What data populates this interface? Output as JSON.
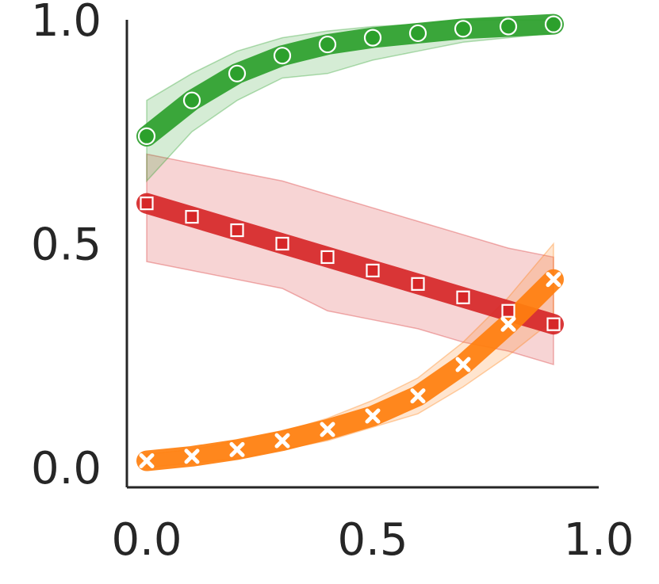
{
  "chart_data": {
    "type": "line",
    "title": "",
    "xlabel": "",
    "ylabel": "",
    "xlim": [
      0.0,
      1.0
    ],
    "ylim": [
      0.0,
      1.0
    ],
    "x_ticks": [
      "0.0",
      "0.5",
      "1.0"
    ],
    "y_ticks": [
      "0.0",
      "0.5",
      "1.0"
    ],
    "grid": false,
    "legend": "none",
    "x": [
      0.0,
      0.1,
      0.2,
      0.3,
      0.4,
      0.5,
      0.6,
      0.7,
      0.8,
      0.9
    ],
    "series": [
      {
        "color": "#2ca02c",
        "marker": "circle",
        "values": [
          0.74,
          0.82,
          0.88,
          0.92,
          0.945,
          0.96,
          0.97,
          0.98,
          0.985,
          0.99
        ],
        "band_lower": [
          0.64,
          0.75,
          0.82,
          0.87,
          0.88,
          0.91,
          0.93,
          0.95,
          0.96,
          0.97
        ],
        "band_upper": [
          0.82,
          0.88,
          0.93,
          0.96,
          0.975,
          0.985,
          0.99,
          1.0,
          1.0,
          1.0
        ]
      },
      {
        "color": "#d62728",
        "marker": "square",
        "values": [
          0.59,
          0.56,
          0.53,
          0.5,
          0.47,
          0.44,
          0.41,
          0.38,
          0.35,
          0.32
        ],
        "band_lower": [
          0.46,
          0.44,
          0.42,
          0.4,
          0.35,
          0.33,
          0.31,
          0.28,
          0.26,
          0.23
        ],
        "band_upper": [
          0.7,
          0.68,
          0.66,
          0.64,
          0.61,
          0.58,
          0.55,
          0.52,
          0.49,
          0.47
        ]
      },
      {
        "color": "#ff7f0e",
        "marker": "x",
        "values": [
          0.015,
          0.025,
          0.04,
          0.06,
          0.085,
          0.115,
          0.16,
          0.23,
          0.32,
          0.42
        ],
        "band_lower": [
          0.0,
          0.01,
          0.02,
          0.04,
          0.06,
          0.09,
          0.12,
          0.18,
          0.25,
          0.33
        ],
        "band_upper": [
          0.03,
          0.04,
          0.06,
          0.08,
          0.11,
          0.15,
          0.2,
          0.28,
          0.38,
          0.5
        ]
      }
    ]
  }
}
